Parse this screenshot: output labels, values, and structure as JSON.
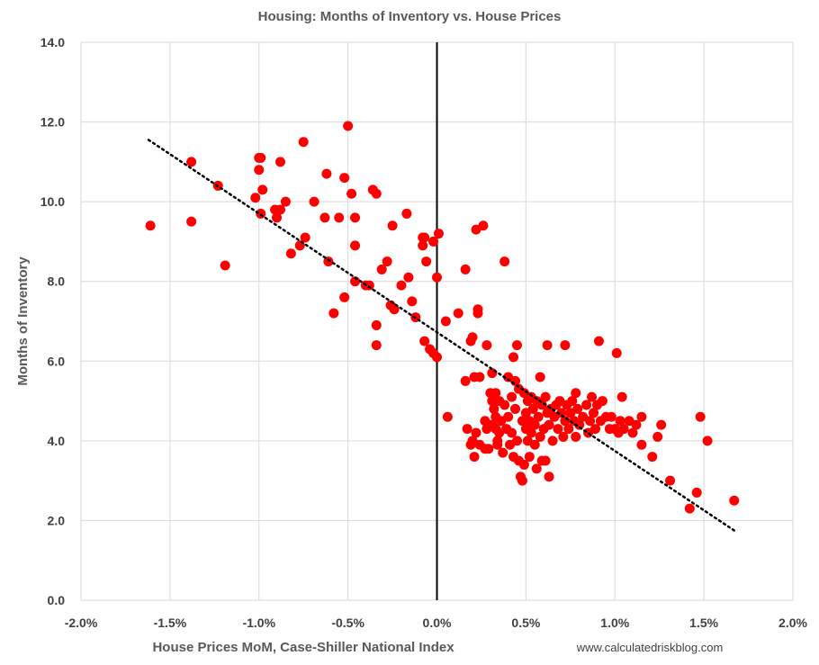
{
  "chart_data": {
    "type": "scatter",
    "title": "Housing: Months of Inventory vs. House Prices",
    "xlabel": "House Prices MoM, Case-Shiller National Index",
    "ylabel": "Months of Inventory",
    "source": "www.calculatedriskblog.com",
    "xlim": [
      -0.02,
      0.02
    ],
    "ylim": [
      0,
      14
    ],
    "x_ticks": [
      -0.02,
      -0.015,
      -0.01,
      -0.005,
      0,
      0.005,
      0.01,
      0.015,
      0.02
    ],
    "x_tick_labels": [
      "-2.0%",
      "-1.5%",
      "-1.0%",
      "-0.5%",
      "0.0%",
      "0.5%",
      "1.0%",
      "1.5%",
      "2.0%"
    ],
    "y_ticks": [
      0,
      2,
      4,
      6,
      8,
      10,
      12,
      14
    ],
    "y_tick_labels": [
      "0.0",
      "2.0",
      "4.0",
      "6.0",
      "8.0",
      "10.0",
      "12.0",
      "14.0"
    ],
    "grid": true,
    "colors": {
      "points": "#ff0000",
      "trendline": "#000000",
      "zero_line": "#000000",
      "grid": "#d9d9d9"
    },
    "trendline": {
      "style": "dotted",
      "x": [
        -0.0162,
        0.0167
      ],
      "y": [
        11.55,
        1.75
      ]
    },
    "points": [
      [
        -0.0161,
        9.4
      ],
      [
        -0.0138,
        11.0
      ],
      [
        -0.0138,
        9.5
      ],
      [
        -0.0123,
        10.4
      ],
      [
        -0.0119,
        8.4
      ],
      [
        -0.0102,
        10.1
      ],
      [
        -0.01,
        11.1
      ],
      [
        -0.0099,
        11.1
      ],
      [
        -0.01,
        10.8
      ],
      [
        -0.0099,
        9.7
      ],
      [
        -0.0098,
        10.3
      ],
      [
        -0.0091,
        9.8
      ],
      [
        -0.009,
        9.6
      ],
      [
        -0.0088,
        9.8
      ],
      [
        -0.0088,
        11.0
      ],
      [
        -0.0085,
        10.0
      ],
      [
        -0.0082,
        8.7
      ],
      [
        -0.0077,
        8.9
      ],
      [
        -0.0075,
        11.5
      ],
      [
        -0.0074,
        9.1
      ],
      [
        -0.0069,
        10.0
      ],
      [
        -0.0063,
        9.6
      ],
      [
        -0.0062,
        10.7
      ],
      [
        -0.0061,
        8.5
      ],
      [
        -0.0058,
        7.2
      ],
      [
        -0.0055,
        9.6
      ],
      [
        -0.0052,
        10.6
      ],
      [
        -0.0052,
        7.6
      ],
      [
        -0.005,
        11.9
      ],
      [
        -0.0048,
        10.2
      ],
      [
        -0.0046,
        9.6
      ],
      [
        -0.0046,
        8.9
      ],
      [
        -0.0046,
        8.0
      ],
      [
        -0.004,
        7.9
      ],
      [
        -0.0038,
        7.9
      ],
      [
        -0.0036,
        10.3
      ],
      [
        -0.0034,
        10.2
      ],
      [
        -0.0034,
        6.9
      ],
      [
        -0.0034,
        6.4
      ],
      [
        -0.0031,
        8.3
      ],
      [
        -0.0028,
        8.5
      ],
      [
        -0.0026,
        7.4
      ],
      [
        -0.0025,
        9.4
      ],
      [
        -0.0024,
        7.3
      ],
      [
        -0.002,
        7.9
      ],
      [
        -0.0017,
        9.7
      ],
      [
        -0.0016,
        8.1
      ],
      [
        -0.0014,
        7.5
      ],
      [
        -0.0012,
        7.1
      ],
      [
        -0.0008,
        9.1
      ],
      [
        -0.0008,
        8.9
      ],
      [
        -0.0007,
        9.1
      ],
      [
        -0.0007,
        6.5
      ],
      [
        -0.0006,
        8.5
      ],
      [
        -0.0004,
        6.3
      ],
      [
        -0.0002,
        6.2
      ],
      [
        -0.0002,
        9.0
      ],
      [
        0.0,
        6.1
      ],
      [
        0.0,
        8.1
      ],
      [
        0.0001,
        9.2
      ],
      [
        0.0005,
        7.0
      ],
      [
        0.0006,
        4.6
      ],
      [
        0.0012,
        7.2
      ],
      [
        0.0016,
        8.3
      ],
      [
        0.0016,
        5.5
      ],
      [
        0.0017,
        4.3
      ],
      [
        0.0019,
        6.5
      ],
      [
        0.0019,
        3.9
      ],
      [
        0.002,
        4.0
      ],
      [
        0.002,
        6.6
      ],
      [
        0.0021,
        5.6
      ],
      [
        0.0021,
        3.6
      ],
      [
        0.0022,
        9.3
      ],
      [
        0.0022,
        4.2
      ],
      [
        0.0023,
        7.3
      ],
      [
        0.0023,
        7.2
      ],
      [
        0.0024,
        5.6
      ],
      [
        0.0024,
        3.9
      ],
      [
        0.0026,
        9.4
      ],
      [
        0.0027,
        4.5
      ],
      [
        0.0027,
        3.8
      ],
      [
        0.0028,
        6.4
      ],
      [
        0.0028,
        4.3
      ],
      [
        0.0029,
        3.8
      ],
      [
        0.003,
        5.2
      ],
      [
        0.0031,
        5.7
      ],
      [
        0.0031,
        5.0
      ],
      [
        0.0031,
        4.4
      ],
      [
        0.0032,
        4.8
      ],
      [
        0.0033,
        5.2
      ],
      [
        0.0033,
        4.6
      ],
      [
        0.0033,
        4.3
      ],
      [
        0.0034,
        4.0
      ],
      [
        0.0034,
        3.9
      ],
      [
        0.0035,
        5.0
      ],
      [
        0.0035,
        4.2
      ],
      [
        0.0036,
        4.5
      ],
      [
        0.0037,
        3.7
      ],
      [
        0.0038,
        8.5
      ],
      [
        0.0038,
        4.9
      ],
      [
        0.0039,
        4.3
      ],
      [
        0.004,
        5.6
      ],
      [
        0.004,
        4.6
      ],
      [
        0.0041,
        3.9
      ],
      [
        0.0042,
        5.1
      ],
      [
        0.0042,
        4.2
      ],
      [
        0.0043,
        6.1
      ],
      [
        0.0043,
        3.6
      ],
      [
        0.0044,
        5.5
      ],
      [
        0.0044,
        4.8
      ],
      [
        0.0045,
        6.4
      ],
      [
        0.0045,
        4.0
      ],
      [
        0.0046,
        5.3
      ],
      [
        0.0046,
        3.5
      ],
      [
        0.0047,
        3.1
      ],
      [
        0.0048,
        4.5
      ],
      [
        0.0048,
        3.0
      ],
      [
        0.0049,
        5.2
      ],
      [
        0.0049,
        3.4
      ],
      [
        0.005,
        4.7
      ],
      [
        0.005,
        4.3
      ],
      [
        0.0051,
        5.0
      ],
      [
        0.0051,
        4.0
      ],
      [
        0.0052,
        4.5
      ],
      [
        0.0052,
        3.6
      ],
      [
        0.0053,
        5.1
      ],
      [
        0.0053,
        4.2
      ],
      [
        0.0054,
        4.8
      ],
      [
        0.0055,
        4.4
      ],
      [
        0.0055,
        3.9
      ],
      [
        0.0056,
        5.0
      ],
      [
        0.0056,
        3.3
      ],
      [
        0.0057,
        4.6
      ],
      [
        0.0058,
        4.1
      ],
      [
        0.0058,
        5.6
      ],
      [
        0.0059,
        3.5
      ],
      [
        0.0059,
        4.9
      ],
      [
        0.006,
        4.3
      ],
      [
        0.0061,
        5.1
      ],
      [
        0.0061,
        3.5
      ],
      [
        0.0062,
        6.4
      ],
      [
        0.0062,
        4.7
      ],
      [
        0.0063,
        4.4
      ],
      [
        0.0063,
        3.1
      ],
      [
        0.0064,
        4.8
      ],
      [
        0.0065,
        4.0
      ],
      [
        0.0066,
        4.6
      ],
      [
        0.0067,
        4.9
      ],
      [
        0.0068,
        4.3
      ],
      [
        0.0069,
        5.0
      ],
      [
        0.007,
        4.7
      ],
      [
        0.0071,
        4.1
      ],
      [
        0.0072,
        6.4
      ],
      [
        0.0072,
        4.5
      ],
      [
        0.0073,
        4.9
      ],
      [
        0.0074,
        4.3
      ],
      [
        0.0075,
        4.7
      ],
      [
        0.0076,
        5.0
      ],
      [
        0.0077,
        4.5
      ],
      [
        0.0078,
        5.2
      ],
      [
        0.0078,
        4.1
      ],
      [
        0.0079,
        4.8
      ],
      [
        0.008,
        4.4
      ],
      [
        0.0082,
        4.6
      ],
      [
        0.0084,
        4.9
      ],
      [
        0.0085,
        4.2
      ],
      [
        0.0086,
        4.5
      ],
      [
        0.0087,
        5.1
      ],
      [
        0.0088,
        4.7
      ],
      [
        0.0089,
        4.3
      ],
      [
        0.009,
        4.9
      ],
      [
        0.0091,
        6.5
      ],
      [
        0.0092,
        4.5
      ],
      [
        0.0093,
        5.0
      ],
      [
        0.0095,
        4.6
      ],
      [
        0.0097,
        4.3
      ],
      [
        0.0098,
        4.6
      ],
      [
        0.01,
        4.3
      ],
      [
        0.0101,
        6.2
      ],
      [
        0.0102,
        4.2
      ],
      [
        0.0103,
        4.5
      ],
      [
        0.0104,
        5.1
      ],
      [
        0.0105,
        4.3
      ],
      [
        0.0108,
        4.5
      ],
      [
        0.011,
        4.2
      ],
      [
        0.0112,
        4.4
      ],
      [
        0.0115,
        4.6
      ],
      [
        0.0115,
        3.9
      ],
      [
        0.0121,
        3.6
      ],
      [
        0.0124,
        4.1
      ],
      [
        0.0126,
        4.4
      ],
      [
        0.0131,
        3.0
      ],
      [
        0.0142,
        2.3
      ],
      [
        0.0146,
        2.7
      ],
      [
        0.0148,
        4.6
      ],
      [
        0.0152,
        4.0
      ],
      [
        0.0167,
        2.5
      ]
    ]
  }
}
